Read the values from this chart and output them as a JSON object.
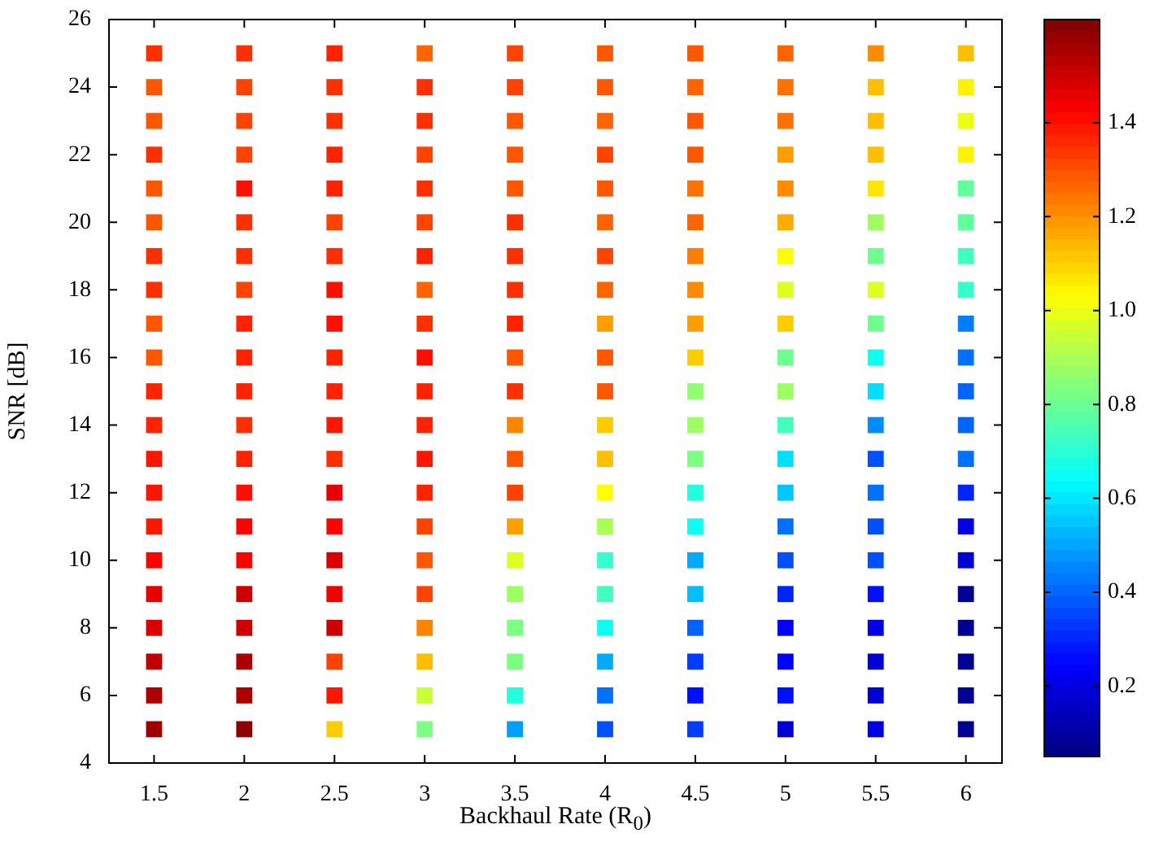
{
  "chart_data": {
    "type": "scatter",
    "xlabel": "Backhaul Rate (R$_{0}$)",
    "ylabel": "SNR [dB]",
    "xlim": [
      1.25,
      6.2
    ],
    "xticks": [
      1.5,
      2,
      2.5,
      3,
      3.5,
      4,
      4.5,
      5,
      5.5,
      6
    ],
    "ylim": [
      4,
      26
    ],
    "yticks": [
      4,
      6,
      8,
      10,
      12,
      14,
      16,
      18,
      20,
      22,
      24,
      26
    ],
    "clim": [
      0.05,
      1.62
    ],
    "cticks": [
      0.2,
      0.4,
      0.6,
      0.8,
      {
        "value": 1,
        "label": "1.0"
      },
      1.2,
      1.4
    ],
    "marker": "square",
    "grid": false,
    "legend": false,
    "x": [
      1.5,
      1.5,
      1.5,
      1.5,
      1.5,
      1.5,
      1.5,
      1.5,
      1.5,
      1.5,
      1.5,
      1.5,
      1.5,
      1.5,
      1.5,
      1.5,
      1.5,
      1.5,
      1.5,
      1.5,
      1.5,
      2,
      2,
      2,
      2,
      2,
      2,
      2,
      2,
      2,
      2,
      2,
      2,
      2,
      2,
      2,
      2,
      2,
      2,
      2,
      2,
      2,
      2.5,
      2.5,
      2.5,
      2.5,
      2.5,
      2.5,
      2.5,
      2.5,
      2.5,
      2.5,
      2.5,
      2.5,
      2.5,
      2.5,
      2.5,
      2.5,
      2.5,
      2.5,
      2.5,
      2.5,
      2.5,
      3,
      3,
      3,
      3,
      3,
      3,
      3,
      3,
      3,
      3,
      3,
      3,
      3,
      3,
      3,
      3,
      3,
      3,
      3,
      3,
      3,
      3.5,
      3.5,
      3.5,
      3.5,
      3.5,
      3.5,
      3.5,
      3.5,
      3.5,
      3.5,
      3.5,
      3.5,
      3.5,
      3.5,
      3.5,
      3.5,
      3.5,
      3.5,
      3.5,
      3.5,
      3.5,
      4,
      4,
      4,
      4,
      4,
      4,
      4,
      4,
      4,
      4,
      4,
      4,
      4,
      4,
      4,
      4,
      4,
      4,
      4,
      4,
      4,
      4.5,
      4.5,
      4.5,
      4.5,
      4.5,
      4.5,
      4.5,
      4.5,
      4.5,
      4.5,
      4.5,
      4.5,
      4.5,
      4.5,
      4.5,
      4.5,
      4.5,
      4.5,
      4.5,
      4.5,
      4.5,
      5,
      5,
      5,
      5,
      5,
      5,
      5,
      5,
      5,
      5,
      5,
      5,
      5,
      5,
      5,
      5,
      5,
      5,
      5,
      5,
      5,
      5.5,
      5.5,
      5.5,
      5.5,
      5.5,
      5.5,
      5.5,
      5.5,
      5.5,
      5.5,
      5.5,
      5.5,
      5.5,
      5.5,
      5.5,
      5.5,
      5.5,
      5.5,
      5.5,
      5.5,
      5.5,
      6,
      6,
      6,
      6,
      6,
      6,
      6,
      6,
      6,
      6,
      6,
      6,
      6,
      6,
      6,
      6,
      6,
      6,
      6,
      6,
      6
    ],
    "values": [
      5,
      6,
      7,
      8,
      9,
      10,
      11,
      12,
      13,
      14,
      15,
      16,
      17,
      18,
      19,
      20,
      21,
      22,
      23,
      24,
      25,
      5,
      6,
      7,
      8,
      9,
      10,
      11,
      12,
      13,
      14,
      15,
      16,
      17,
      18,
      19,
      20,
      21,
      22,
      23,
      24,
      25,
      5,
      6,
      7,
      8,
      9,
      10,
      11,
      12,
      13,
      14,
      15,
      16,
      17,
      18,
      19,
      20,
      21,
      22,
      23,
      24,
      25,
      5,
      6,
      7,
      8,
      9,
      10,
      11,
      12,
      13,
      14,
      15,
      16,
      17,
      18,
      19,
      20,
      21,
      22,
      23,
      24,
      25,
      5,
      6,
      7,
      8,
      9,
      10,
      11,
      12,
      13,
      14,
      15,
      16,
      17,
      18,
      19,
      20,
      21,
      22,
      23,
      24,
      25,
      5,
      6,
      7,
      8,
      9,
      10,
      11,
      12,
      13,
      14,
      15,
      16,
      17,
      18,
      19,
      20,
      21,
      22,
      23,
      24,
      25,
      5,
      6,
      7,
      8,
      9,
      10,
      11,
      12,
      13,
      14,
      15,
      16,
      17,
      18,
      19,
      20,
      21,
      22,
      23,
      24,
      25,
      5,
      6,
      7,
      8,
      9,
      10,
      11,
      12,
      13,
      14,
      15,
      16,
      17,
      18,
      19,
      20,
      21,
      22,
      23,
      24,
      25,
      5,
      6,
      7,
      8,
      9,
      10,
      11,
      12,
      13,
      14,
      15,
      16,
      17,
      18,
      19,
      20,
      21,
      22,
      23,
      24,
      25,
      5,
      6,
      7,
      8,
      9,
      10,
      11,
      12,
      13,
      14,
      15,
      16,
      17,
      18,
      19,
      20,
      21,
      22,
      23,
      24,
      25
    ],
    "cvalues": [
      1.57,
      1.55,
      1.52,
      1.48,
      1.46,
      1.42,
      1.39,
      1.39,
      1.39,
      1.37,
      1.37,
      1.29,
      1.29,
      1.35,
      1.35,
      1.29,
      1.29,
      1.35,
      1.29,
      1.29,
      1.35,
      1.6,
      1.55,
      1.55,
      1.5,
      1.5,
      1.42,
      1.42,
      1.4,
      1.37,
      1.35,
      1.37,
      1.37,
      1.37,
      1.32,
      1.35,
      1.35,
      1.4,
      1.32,
      1.32,
      1.32,
      1.35,
      1.11,
      1.39,
      1.32,
      1.5,
      1.44,
      1.48,
      1.42,
      1.46,
      1.35,
      1.39,
      1.37,
      1.37,
      1.4,
      1.4,
      1.35,
      1.32,
      1.37,
      1.37,
      1.35,
      1.35,
      1.37,
      0.83,
      0.95,
      1.13,
      1.22,
      1.32,
      1.29,
      1.32,
      1.37,
      1.39,
      1.37,
      1.37,
      1.4,
      1.35,
      1.27,
      1.37,
      1.32,
      1.35,
      1.32,
      1.35,
      1.35,
      1.27,
      0.49,
      0.69,
      0.83,
      0.83,
      0.88,
      0.98,
      1.18,
      1.32,
      1.29,
      1.22,
      1.35,
      1.29,
      1.37,
      1.35,
      1.35,
      1.35,
      1.29,
      1.29,
      1.29,
      1.32,
      1.32,
      0.37,
      0.42,
      0.51,
      0.66,
      0.74,
      0.72,
      0.9,
      1.03,
      1.13,
      1.11,
      1.29,
      1.29,
      1.18,
      1.27,
      1.32,
      1.27,
      1.29,
      1.32,
      1.27,
      1.29,
      1.29,
      0.34,
      0.27,
      0.34,
      0.4,
      0.54,
      0.51,
      0.66,
      0.69,
      0.83,
      0.88,
      0.86,
      1.11,
      1.18,
      1.21,
      1.23,
      1.27,
      1.25,
      1.29,
      1.29,
      1.27,
      1.29,
      0.18,
      0.27,
      0.25,
      0.25,
      0.3,
      0.37,
      0.42,
      0.55,
      0.59,
      0.74,
      0.88,
      0.81,
      1.11,
      0.98,
      1.03,
      1.16,
      1.21,
      1.18,
      1.25,
      1.25,
      1.27,
      0.21,
      0.18,
      0.18,
      0.21,
      0.27,
      0.37,
      0.37,
      0.42,
      0.37,
      0.46,
      0.59,
      0.66,
      0.81,
      0.98,
      0.81,
      0.88,
      1.07,
      1.13,
      1.13,
      1.13,
      1.21,
      0.08,
      0.08,
      0.08,
      0.08,
      0.08,
      0.18,
      0.21,
      0.3,
      0.42,
      0.4,
      0.4,
      0.42,
      0.44,
      0.72,
      0.74,
      0.79,
      0.79,
      1.05,
      1,
      1.05,
      1.13
    ]
  }
}
